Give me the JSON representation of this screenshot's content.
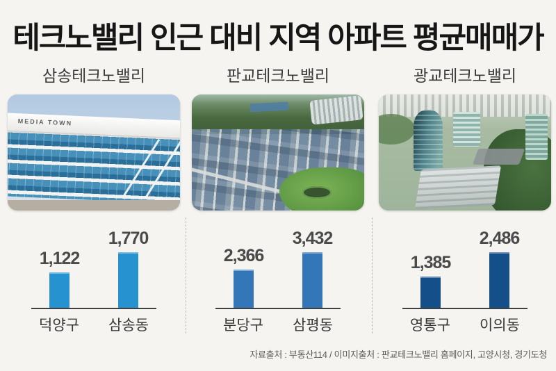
{
  "title": "테크노밸리 인근 대비 지역 아파트 평균매매가",
  "sections": [
    {
      "name": "삼송테크노밸리",
      "photo_text": "MEDIA TOWN"
    },
    {
      "name": "판교테크노밸리"
    },
    {
      "name": "광교테크노밸리"
    }
  ],
  "chart_data": [
    {
      "type": "bar",
      "title": "삼송테크노밸리",
      "categories": [
        "덕양구",
        "삼송동"
      ],
      "values": [
        1122,
        1770
      ],
      "value_labels": [
        "1,122",
        "1,770"
      ],
      "bar_color": "#2693d0",
      "legend": "none",
      "grid": false
    },
    {
      "type": "bar",
      "title": "판교테크노밸리",
      "categories": [
        "분당구",
        "삼평동"
      ],
      "values": [
        2366,
        3432
      ],
      "value_labels": [
        "2,366",
        "3,432"
      ],
      "bar_color": "#3377b9",
      "legend": "none",
      "grid": false
    },
    {
      "type": "bar",
      "title": "광교테크노밸리",
      "categories": [
        "영통구",
        "이의동"
      ],
      "values": [
        1385,
        2486
      ],
      "value_labels": [
        "1,385",
        "2,486"
      ],
      "bar_color": "#144f8a",
      "legend": "none",
      "grid": false
    }
  ],
  "footer": {
    "source": "자료출처 : 부동산114 / 이미지출처 : 판교테크노밸리 홈페이지, 고양시청, 경기도청"
  },
  "colors": {
    "background": "#f6f4f1",
    "title_text": "#161616",
    "bar_samsong": "#2693d0",
    "bar_pangyo": "#3377b9",
    "bar_gwanggyo": "#144f8a",
    "axis_line": "#3f3f3f"
  }
}
